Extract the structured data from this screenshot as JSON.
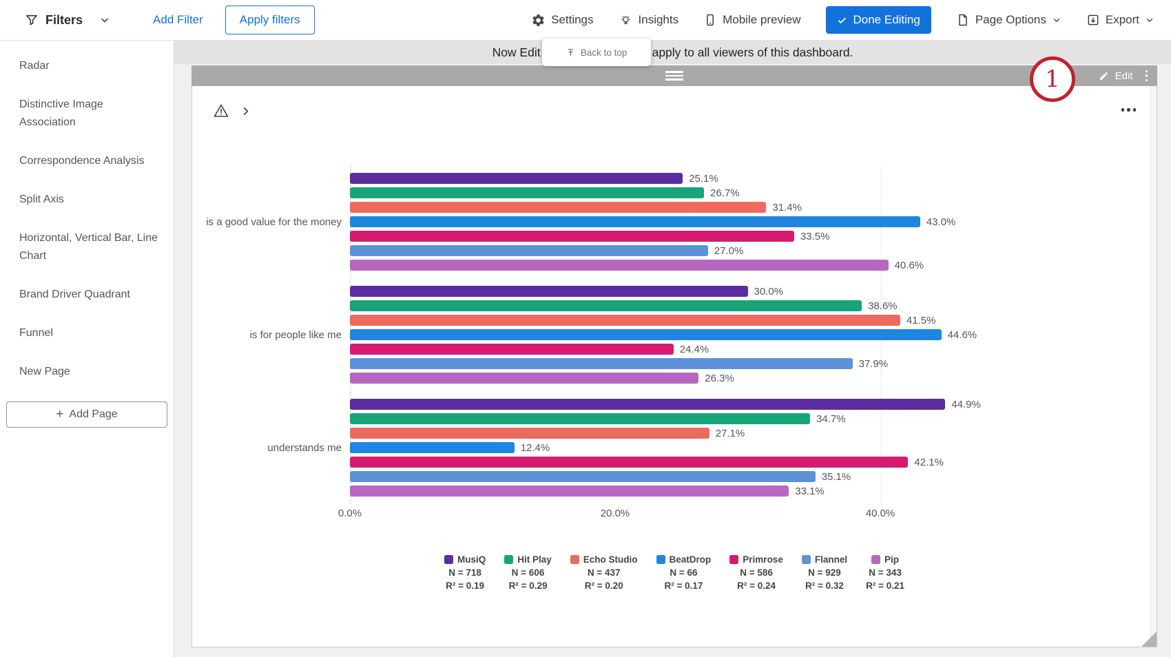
{
  "toolbar": {
    "filters_label": "Filters",
    "add_filter_label": "Add Filter",
    "apply_filters_label": "Apply filters",
    "settings_label": "Settings",
    "insights_label": "Insights",
    "mobile_preview_label": "Mobile preview",
    "done_editing_label": "Done Editing",
    "page_options_label": "Page Options",
    "export_label": "Export"
  },
  "sidebar": {
    "items": [
      {
        "label": "Radar"
      },
      {
        "label": "Distinctive Image Association"
      },
      {
        "label": "Correspondence Analysis"
      },
      {
        "label": "Split Axis"
      },
      {
        "label": "Horizontal, Vertical Bar, Line Chart"
      },
      {
        "label": "Brand Driver Quadrant"
      },
      {
        "label": "Funnel"
      },
      {
        "label": "New Page"
      }
    ],
    "add_page_label": "Add Page"
  },
  "notification": {
    "text_left": "Now Edit",
    "text_right": "apply to all viewers of this dashboard."
  },
  "back_to_top": {
    "label": "Back to top"
  },
  "widget": {
    "edit_label": "Edit"
  },
  "annotation": {
    "number": "1"
  },
  "chart_data": {
    "type": "bar",
    "orientation": "horizontal",
    "categories": [
      "is a good value for the money",
      "is for people like me",
      "understands me"
    ],
    "series": [
      {
        "name": "MusiQ",
        "color": "#5b2d9e",
        "n_label": "N = 718",
        "r2_label": "R² = 0.19",
        "values": [
          25.1,
          30.0,
          44.9
        ]
      },
      {
        "name": "Hit Play",
        "color": "#17a479",
        "n_label": "N = 606",
        "r2_label": "R² = 0.29",
        "values": [
          26.7,
          38.6,
          34.7
        ]
      },
      {
        "name": "Echo Studio",
        "color": "#ee6a61",
        "n_label": "N = 437",
        "r2_label": "R² = 0.20",
        "values": [
          31.4,
          41.5,
          27.1
        ]
      },
      {
        "name": "BeatDrop",
        "color": "#1f86e0",
        "n_label": "N = 66",
        "r2_label": "R² = 0.17",
        "values": [
          43.0,
          44.6,
          12.4
        ]
      },
      {
        "name": "Primrose",
        "color": "#d61a6f",
        "n_label": "N = 586",
        "r2_label": "R² = 0.24",
        "values": [
          33.5,
          24.4,
          42.1
        ]
      },
      {
        "name": "Flannel",
        "color": "#5d92d8",
        "n_label": "N = 929",
        "r2_label": "R² = 0.32",
        "values": [
          27.0,
          37.9,
          35.1
        ]
      },
      {
        "name": "Pip",
        "color": "#b767c0",
        "n_label": "N = 343",
        "r2_label": "R² = 0.21",
        "values": [
          40.6,
          26.3,
          33.1
        ]
      }
    ],
    "x_ticks": [
      "0.0%",
      "20.0%",
      "40.0%"
    ],
    "x_tick_values": [
      0,
      20,
      40
    ],
    "xlim": [
      0,
      46
    ],
    "value_format": "one_decimal_percent",
    "legend_position": "bottom"
  }
}
